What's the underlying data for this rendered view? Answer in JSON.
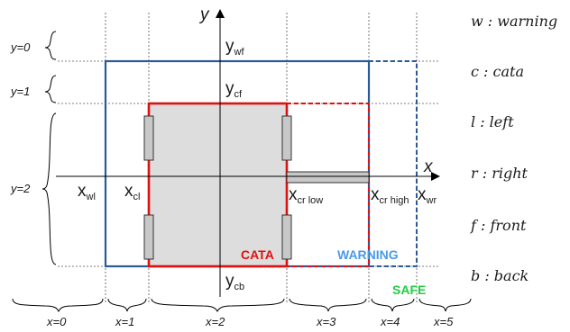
{
  "axes": {
    "y": "y",
    "x": "x"
  },
  "sub": {
    "wf": "wf",
    "cf": "cf",
    "cb": "cb",
    "wl": "wl",
    "cl": "cl",
    "cr_low": "cr low",
    "cr_high": "cr high",
    "wr": "wr"
  },
  "base": {
    "y": "y",
    "x": "x"
  },
  "zones": {
    "cata": "CATA",
    "warning": "WARNING",
    "safe": "SAFE"
  },
  "colors": {
    "cata": "#e01010",
    "warning": "#4a9ae8",
    "safe": "#22cc44",
    "blue_box": "#2a5a98",
    "robot_fill": "#dddddd"
  },
  "y_ranges": [
    "y=0",
    "y=1",
    "y=2"
  ],
  "x_ranges": [
    "x=0",
    "x=1",
    "x=2",
    "x=3",
    "x=4",
    "x=5"
  ],
  "legend": [
    "w : warning",
    "c : cata",
    "l : left",
    "r : right",
    "f : front",
    "b : back"
  ]
}
